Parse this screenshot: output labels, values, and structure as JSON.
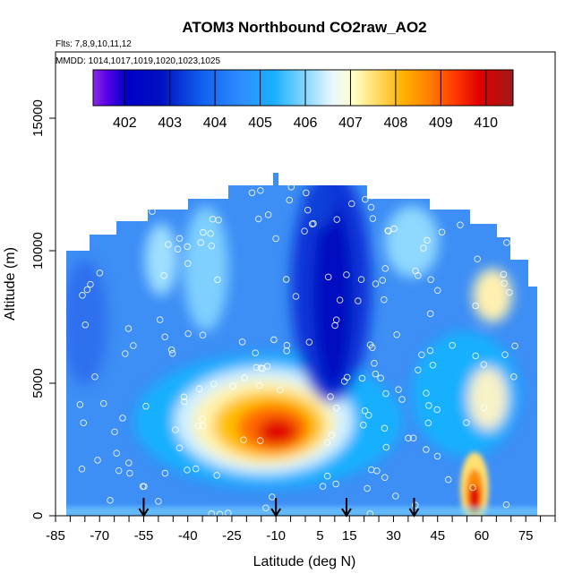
{
  "chart_data": {
    "type": "heatmap",
    "title": "ATOM3 Northbound CO2raw_AO2",
    "subtitle_flights": "Flts: 7,8,9,10,11,12",
    "subtitle_dates": "MMDD: 1014,1017,1019,1020,1023,1025",
    "xlabel": "Latitude (deg N)",
    "ylabel": "Altitude (m)",
    "xlim": [
      -85,
      85
    ],
    "ylim": [
      0,
      17500
    ],
    "x_ticks": [
      -85,
      -70,
      -55,
      -40,
      -25,
      -10,
      5,
      15,
      30,
      45,
      60,
      75
    ],
    "y_ticks": [
      0,
      5000,
      10000,
      15000
    ],
    "colorbar": {
      "ticks": [
        402,
        403,
        404,
        405,
        406,
        407,
        408,
        409,
        410
      ],
      "range": [
        401.3,
        410.6
      ]
    },
    "arrow_latitudes": [
      -55,
      -10,
      14,
      37
    ],
    "hotspots": [
      {
        "lat": -10,
        "alt": 3300,
        "value": 409.6
      },
      {
        "lat": 58,
        "alt": 900,
        "value": 409.2
      },
      {
        "lat": 10,
        "alt": 8500,
        "value": 402.3
      }
    ],
    "colors": {
      "background_field": "#3d8ef5",
      "high": "#e00000",
      "low": "#0010c0"
    }
  }
}
